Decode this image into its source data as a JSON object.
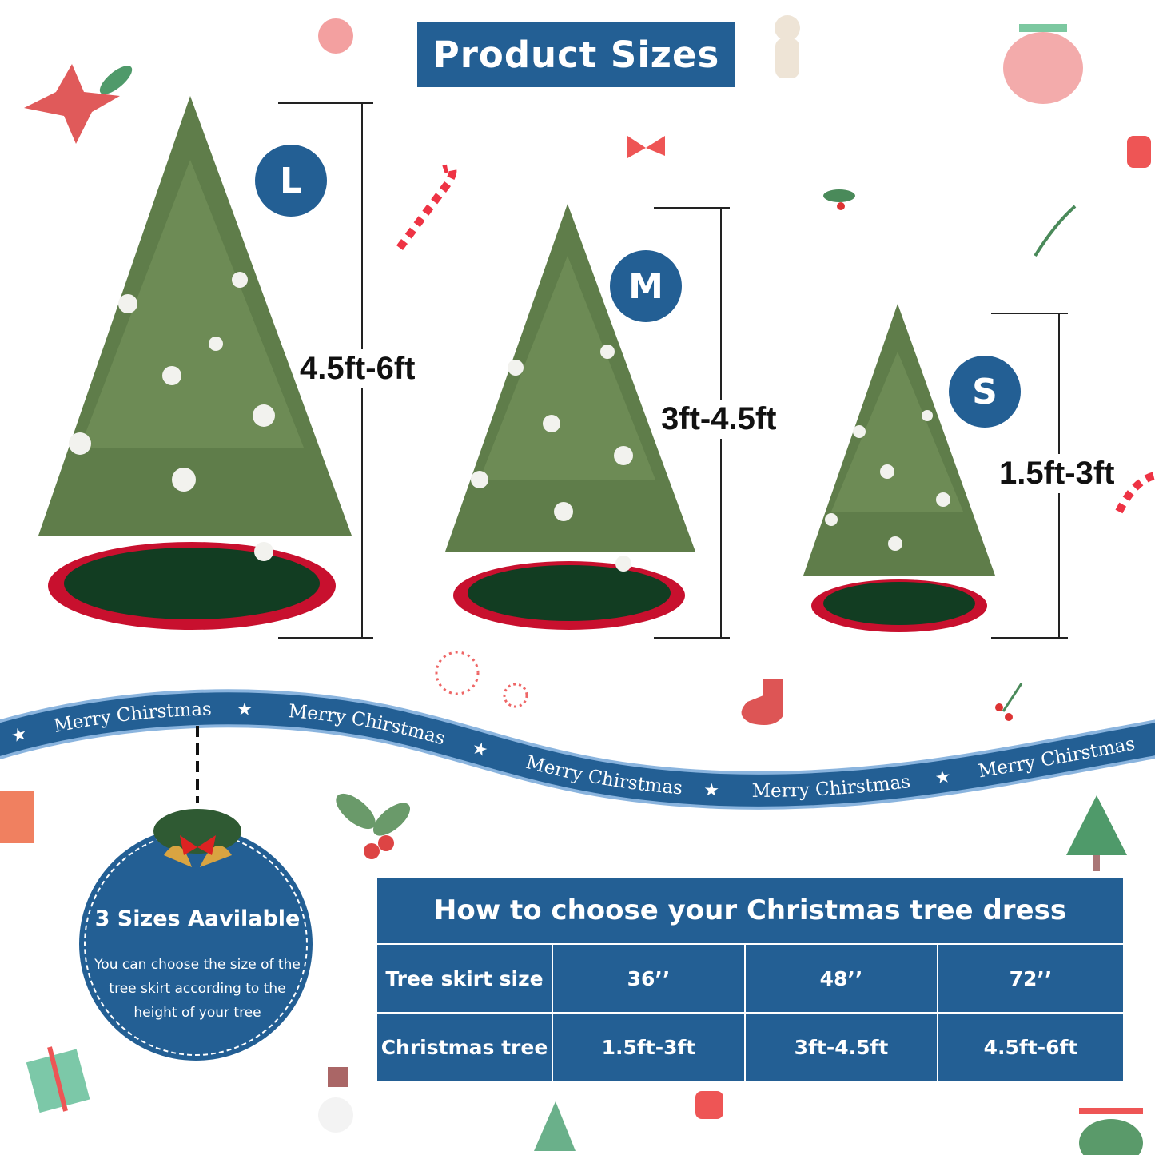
{
  "title": "Product Sizes",
  "sizes": [
    {
      "letter": "L",
      "range": "4.5ft-6ft"
    },
    {
      "letter": "M",
      "range": "3ft-4.5ft"
    },
    {
      "letter": "S",
      "range": "1.5ft-3ft"
    }
  ],
  "banner": {
    "text": "Merry Chirstmas"
  },
  "badge": {
    "title": "3 Sizes Aavilable",
    "text": "You can choose the size of the tree skirt according to the height of your tree"
  },
  "table": {
    "title": "How to choose your Christmas tree dress",
    "rows": [
      {
        "label": "Tree skirt size",
        "values": [
          "36’’",
          "48’’",
          "72’’"
        ]
      },
      {
        "label": "Christmas tree",
        "values": [
          "1.5ft-3ft",
          "3ft-4.5ft",
          "4.5ft-6ft"
        ]
      }
    ]
  },
  "colors": {
    "brand_blue": "#235f94",
    "skirt_red": "#c8102e",
    "skirt_green": "#123d22",
    "tree_green": "#5f7d4a"
  }
}
